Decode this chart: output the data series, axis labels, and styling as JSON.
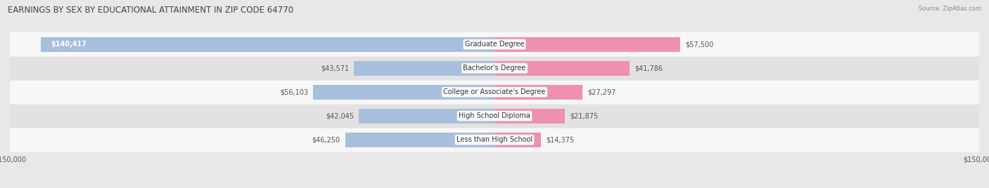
{
  "title": "EARNINGS BY SEX BY EDUCATIONAL ATTAINMENT IN ZIP CODE 64770",
  "source": "Source: ZipAtlas.com",
  "categories": [
    "Less than High School",
    "High School Diploma",
    "College or Associate's Degree",
    "Bachelor's Degree",
    "Graduate Degree"
  ],
  "male_values": [
    46250,
    42045,
    56103,
    43571,
    140417
  ],
  "female_values": [
    14375,
    21875,
    27297,
    41786,
    57500
  ],
  "male_color": "#a8bedd",
  "female_color": "#f090b0",
  "axis_max": 150000,
  "bar_height": 0.62,
  "bg_color": "#e8e8e8",
  "row_bg_light": "#f7f7f7",
  "row_bg_dark": "#e2e2e2",
  "title_fontsize": 8.5,
  "label_fontsize": 7.0,
  "category_fontsize": 7.0,
  "axis_label_fontsize": 7.0,
  "legend_fontsize": 7.5
}
